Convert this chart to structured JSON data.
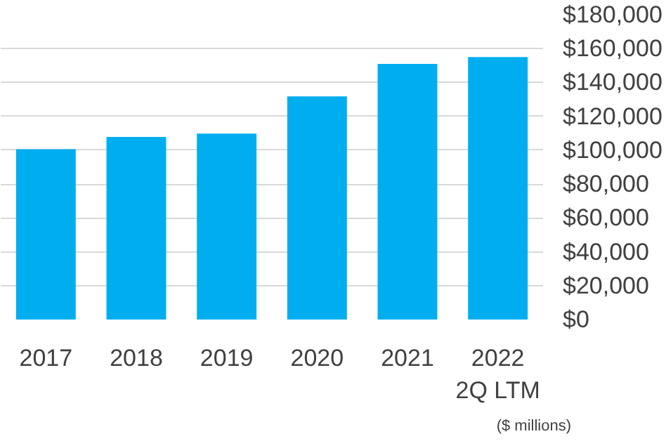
{
  "chart_data": {
    "type": "bar",
    "categories": [
      "2017",
      "2018",
      "2019",
      "2020",
      "2021",
      "2022\n2Q LTM"
    ],
    "values": [
      100600,
      107800,
      109800,
      131800,
      151000,
      155000
    ],
    "color": "#00aeef",
    "ylim": [
      0,
      180000
    ],
    "yticks": [
      {
        "value": 0,
        "label": "$0"
      },
      {
        "value": 20000,
        "label": "$20,000"
      },
      {
        "value": 40000,
        "label": "$40,000"
      },
      {
        "value": 60000,
        "label": "$60,000"
      },
      {
        "value": 80000,
        "label": "$80,000"
      },
      {
        "value": 100000,
        "label": "$100,000"
      },
      {
        "value": 120000,
        "label": "$120,000"
      },
      {
        "value": 140000,
        "label": "$140,000"
      },
      {
        "value": 160000,
        "label": "$160,000"
      },
      {
        "value": 180000,
        "label": "$180,000"
      }
    ],
    "grid": "y",
    "annotations": [
      "($ millions)"
    ]
  }
}
